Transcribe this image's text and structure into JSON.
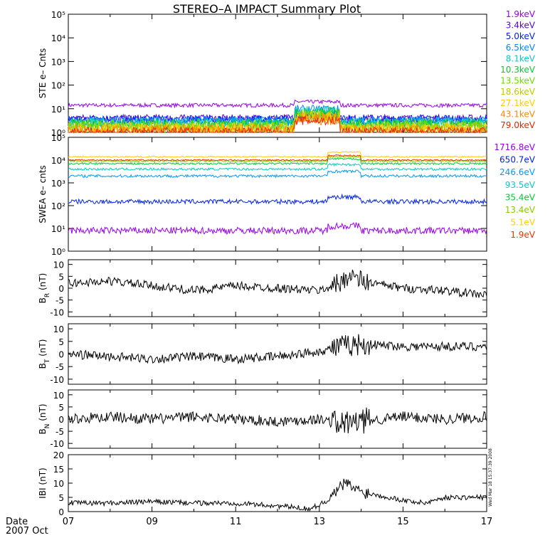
{
  "title": "STEREO–A IMPACT Summary Plot",
  "footer": {
    "date_label": "Date",
    "month_label": "2007 Oct"
  },
  "timestamp": "Wed Mar 18 15:37:39 2008",
  "x_axis": {
    "range_days": [
      7,
      17
    ],
    "ticks": [
      7,
      9,
      11,
      13,
      15,
      17
    ],
    "tick_labels": [
      "07",
      "09",
      "11",
      "13",
      "15",
      "17"
    ]
  },
  "chart_data": [
    {
      "type": "line",
      "panel": "ste",
      "ylabel": "STE e– Cnts",
      "yscale": "log",
      "ylim": [
        1,
        100000
      ],
      "tick_labels": [
        "10⁰",
        "10¹",
        "10²",
        "10³",
        "10⁴",
        "10⁵"
      ],
      "series": [
        {
          "name": "1.9keV",
          "color": "#9900ee",
          "level": 14,
          "noise": 0.08
        },
        {
          "name": "3.4keV",
          "color": "#5500dd",
          "level": 4,
          "noise": 0.15
        },
        {
          "name": "5.0keV",
          "color": "#0022ee",
          "level": 3.5,
          "noise": 0.18
        },
        {
          "name": "6.5keV",
          "color": "#0088ff",
          "level": 3,
          "noise": 0.2
        },
        {
          "name": "8.1keV",
          "color": "#00cccc",
          "level": 2.6,
          "noise": 0.22
        },
        {
          "name": "10.3keV",
          "color": "#00cc33",
          "level": 2.2,
          "noise": 0.25
        },
        {
          "name": "13.5keV",
          "color": "#66dd00",
          "level": 1.9,
          "noise": 0.25
        },
        {
          "name": "18.6keV",
          "color": "#bbcc00",
          "level": 1.6,
          "noise": 0.25
        },
        {
          "name": "27.1keV",
          "color": "#ffcc00",
          "level": 1.4,
          "noise": 0.25
        },
        {
          "name": "43.1keV",
          "color": "#ff8800",
          "level": 1.2,
          "noise": 0.25
        },
        {
          "name": "79.0keV",
          "color": "#ee2200",
          "level": 1.05,
          "noise": 0.2
        }
      ]
    },
    {
      "type": "line",
      "panel": "swea",
      "ylabel": "SWEA e– cnts",
      "yscale": "log",
      "ylim": [
        1,
        100000
      ],
      "tick_labels": [
        "10⁰",
        "10¹",
        "10²",
        "10³",
        "10⁴",
        "10⁵"
      ],
      "series": [
        {
          "name": "1716.8eV",
          "color": "#9900ee",
          "level": 8,
          "noise": 0.15
        },
        {
          "name": "650.7eV",
          "color": "#0022ee",
          "level": 150,
          "noise": 0.1
        },
        {
          "name": "246.6eV",
          "color": "#0099ff",
          "level": 2000,
          "noise": 0.06
        },
        {
          "name": "93.5eV",
          "color": "#00cccc",
          "level": 4000,
          "noise": 0.05
        },
        {
          "name": "35.4eV",
          "color": "#00cc33",
          "level": 7000,
          "noise": 0.04
        },
        {
          "name": "13.4eV",
          "color": "#88cc00",
          "level": 9000,
          "noise": 0.04
        },
        {
          "name": "5.1eV",
          "color": "#ffcc00",
          "level": 14000,
          "noise": 0.03
        },
        {
          "name": "1.9eV",
          "color": "#ee3300",
          "level": 10000,
          "noise": 0.03
        }
      ]
    },
    {
      "type": "line",
      "panel": "br",
      "ylabel": "B",
      "ylabel_sub": "R",
      "ylabel_unit": "(nT)",
      "ylim": [
        -12,
        12
      ],
      "yticks": [
        -10,
        -5,
        0,
        5,
        10
      ],
      "series": [
        {
          "color": "#000000",
          "base": [
            [
              7,
              2
            ],
            [
              8,
              3
            ],
            [
              9,
              1
            ],
            [
              10,
              -1
            ],
            [
              11,
              1
            ],
            [
              12,
              0
            ],
            [
              13,
              -1
            ],
            [
              13.5,
              2
            ],
            [
              13.7,
              6
            ],
            [
              14,
              3
            ],
            [
              15,
              0
            ],
            [
              16,
              -1
            ],
            [
              17,
              -3
            ]
          ],
          "amp": 1.8
        }
      ]
    },
    {
      "type": "line",
      "panel": "bt",
      "ylabel": "B",
      "ylabel_sub": "T",
      "ylabel_unit": "(nT)",
      "ylim": [
        -12,
        12
      ],
      "yticks": [
        -10,
        -5,
        0,
        5,
        10
      ],
      "series": [
        {
          "color": "#000000",
          "base": [
            [
              7,
              0
            ],
            [
              8,
              -1
            ],
            [
              9,
              -2
            ],
            [
              10,
              -1
            ],
            [
              11,
              -2
            ],
            [
              12,
              -1
            ],
            [
              13,
              1
            ],
            [
              13.5,
              3
            ],
            [
              14,
              4
            ],
            [
              15,
              3
            ],
            [
              16,
              3
            ],
            [
              17,
              3
            ]
          ],
          "amp": 1.8
        }
      ]
    },
    {
      "type": "line",
      "panel": "bn",
      "ylabel": "B",
      "ylabel_sub": "N",
      "ylabel_unit": "(nT)",
      "ylim": [
        -12,
        12
      ],
      "yticks": [
        -10,
        -5,
        0,
        5,
        10
      ],
      "series": [
        {
          "color": "#000000",
          "base": [
            [
              7,
              0
            ],
            [
              8,
              1
            ],
            [
              9,
              0
            ],
            [
              10,
              1
            ],
            [
              11,
              0
            ],
            [
              12,
              -1
            ],
            [
              13,
              0
            ],
            [
              13.5,
              -2
            ],
            [
              14,
              -1
            ],
            [
              15,
              1
            ],
            [
              16,
              0
            ],
            [
              17,
              1
            ]
          ],
          "amp": 2.2
        }
      ]
    },
    {
      "type": "line",
      "panel": "b",
      "ylabel": "IBI",
      "ylabel_unit": "(nT)",
      "ylim": [
        0,
        20
      ],
      "yticks": [
        0,
        5,
        10,
        15,
        20
      ],
      "series": [
        {
          "color": "#000000",
          "base": [
            [
              7,
              3
            ],
            [
              8,
              3
            ],
            [
              9,
              3.5
            ],
            [
              10,
              3
            ],
            [
              11,
              3
            ],
            [
              12,
              2
            ],
            [
              12.8,
              1
            ],
            [
              13.2,
              4
            ],
            [
              13.6,
              10
            ],
            [
              14,
              7
            ],
            [
              15,
              4
            ],
            [
              15.5,
              3
            ],
            [
              16,
              5
            ],
            [
              17,
              5
            ]
          ],
          "amp": 0.9
        }
      ]
    }
  ]
}
